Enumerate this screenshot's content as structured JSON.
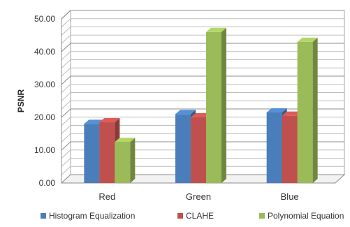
{
  "chart_data": {
    "type": "bar",
    "title": "",
    "xlabel": "",
    "ylabel": "PSNR",
    "ylim": [
      0,
      50
    ],
    "yticks": [
      "0.00",
      "10.00",
      "20.00",
      "30.00",
      "40.00",
      "50.00"
    ],
    "categories": [
      "Red",
      "Green",
      "Blue"
    ],
    "series": [
      {
        "name": "Histogram Equalization",
        "color": "#4a7ebb",
        "values": [
          18.0,
          21.0,
          21.5
        ]
      },
      {
        "name": "CLAHE",
        "color": "#c0504d",
        "values": [
          18.5,
          20.0,
          20.5
        ]
      },
      {
        "name": "Polynomial Equation",
        "color": "#9bbb59",
        "values": [
          12.5,
          46.0,
          43.0
        ]
      }
    ],
    "grid": true,
    "legend_position": "bottom",
    "style": "3d-clustered"
  }
}
